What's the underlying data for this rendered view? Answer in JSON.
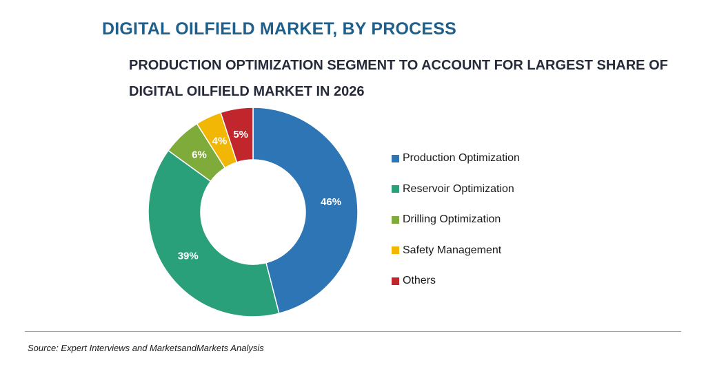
{
  "chart_data": {
    "type": "pie",
    "style": "donut",
    "title": "DIGITAL OILFIELD MARKET, BY PROCESS",
    "subtitle": "PRODUCTION OPTIMIZATION SEGMENT TO ACCOUNT FOR LARGEST SHARE OF DIGITAL OILFIELD MARKET IN 2026",
    "legend_position": "right",
    "slices": [
      {
        "name": "Production Optimization",
        "value": 46,
        "label": "46%",
        "color": "#2e75b6"
      },
      {
        "name": "Reservoir Optimization",
        "value": 39,
        "label": "39%",
        "color": "#2aa07a"
      },
      {
        "name": "Drilling Optimization",
        "value": 6,
        "label": "6%",
        "color": "#7fab3a"
      },
      {
        "name": "Safety Management",
        "value": 4,
        "label": "4%",
        "color": "#f2b705"
      },
      {
        "name": "Others",
        "value": 5,
        "label": "5%",
        "color": "#c0262c"
      }
    ]
  },
  "footer": {
    "source": "Source: Expert Interviews and MarketsandMarkets Analysis",
    "rule_color": "#c9a227"
  }
}
